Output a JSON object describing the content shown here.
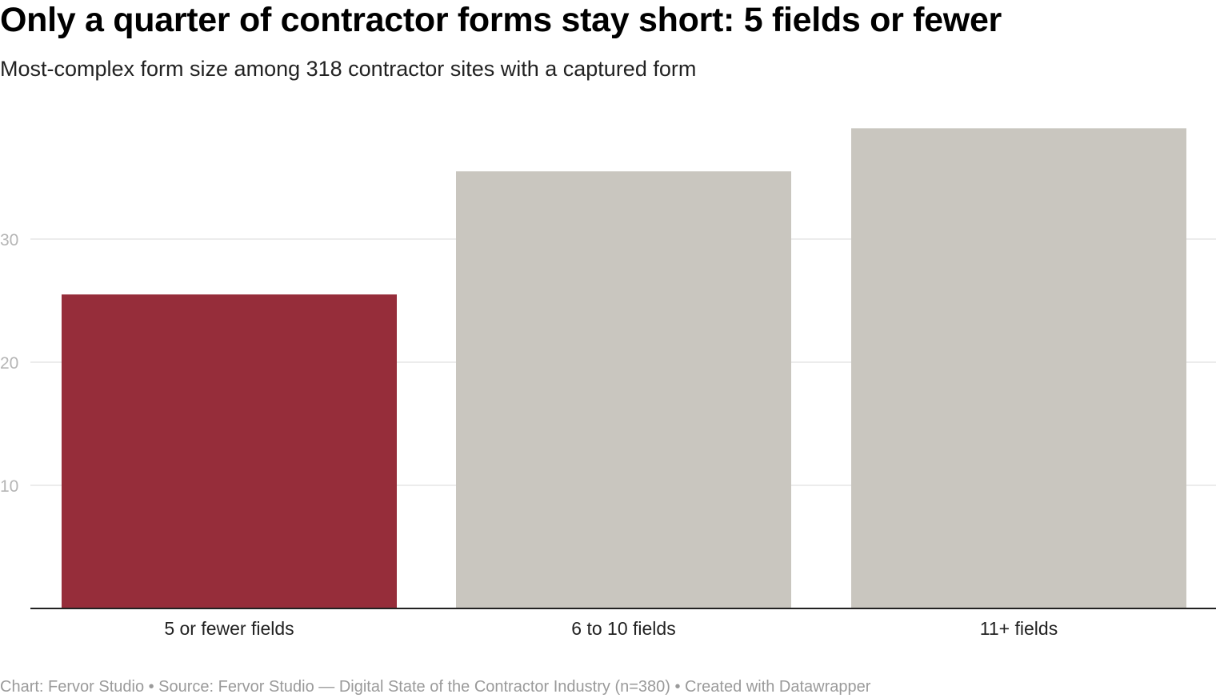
{
  "title": "Only a quarter of contractor forms stay short: 5 fields or fewer",
  "subtitle": "Most-complex form size among 318 contractor sites with a captured form",
  "footer": "Chart: Fervor Studio • Source: Fervor Studio — Digital State of the Contractor Industry (n=380) • Created with Datawrapper",
  "colors": {
    "highlight": "#962d3a",
    "bar": "#c9c6bf",
    "gridline": "#e5e5e5",
    "baseline": "#222222"
  },
  "chart_data": {
    "type": "bar",
    "categories": [
      "5 or fewer fields",
      "6 to 10 fields",
      "11+ fields"
    ],
    "values": [
      25.5,
      35.5,
      39
    ],
    "highlight_index": 0,
    "yticks": [
      10,
      20,
      30
    ],
    "ylim": [
      0,
      42.5
    ],
    "grid": true,
    "title": "Only a quarter of contractor forms stay short: 5 fields or fewer",
    "xlabel": "",
    "ylabel": ""
  }
}
